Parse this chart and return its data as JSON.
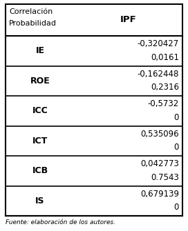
{
  "header_left": [
    "Correlación",
    "Probabilidad"
  ],
  "header_right": "IPF",
  "rows": [
    {
      "label": "IE",
      "corr": "-0,320427",
      "prob": "0,0161"
    },
    {
      "label": "ROE",
      "corr": "-0,162448",
      "prob": "0,2316"
    },
    {
      "label": "ICC",
      "corr": "-0,5732",
      "prob": "0"
    },
    {
      "label": "ICT",
      "corr": "0,535096",
      "prob": "0"
    },
    {
      "label": "ICB",
      "corr": "0,042773",
      "prob": "0.7543"
    },
    {
      "label": "IS",
      "corr": "0,679139",
      "prob": "0"
    }
  ],
  "bg_color": "#ffffff",
  "border_color": "#000000",
  "text_color": "#000000",
  "footer": "Fuente: elaboración de los autores.",
  "figsize": [
    2.72,
    3.35
  ],
  "dpi": 100
}
